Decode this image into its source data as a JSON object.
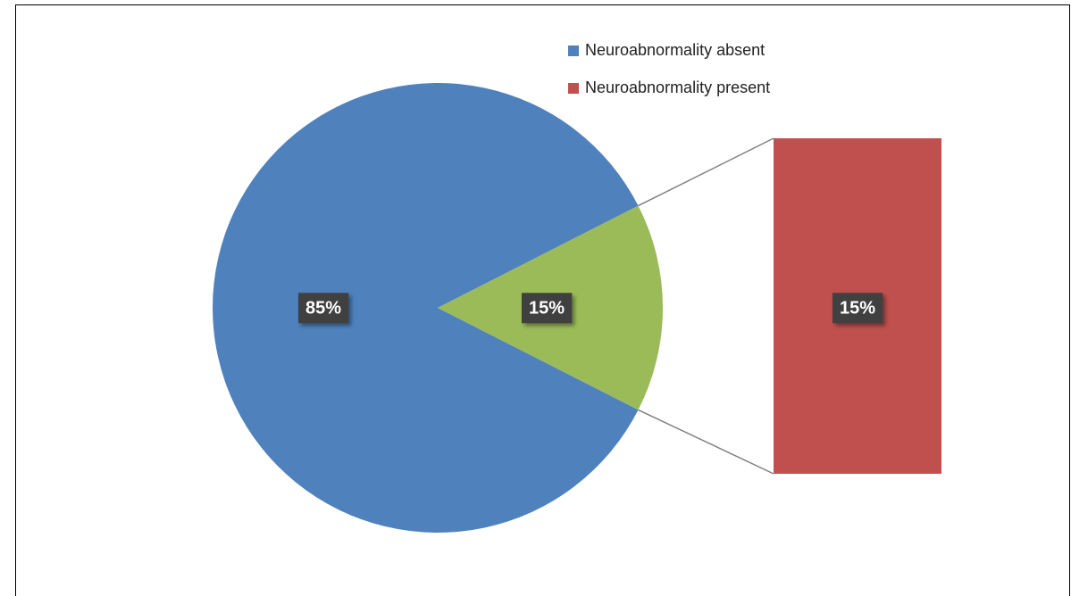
{
  "chart_data": {
    "type": "pie-of-bar",
    "categories": [
      "Neuroabnormality absent",
      "Neuroabnormality present"
    ],
    "values": [
      85,
      15
    ],
    "value_labels": [
      "85%",
      "15%"
    ],
    "colors": [
      "#4f81bd",
      "#c0504d"
    ],
    "pie_other": {
      "value": 15,
      "value_label": "15%",
      "color": "#9bbb59"
    },
    "legend": "top-right"
  }
}
